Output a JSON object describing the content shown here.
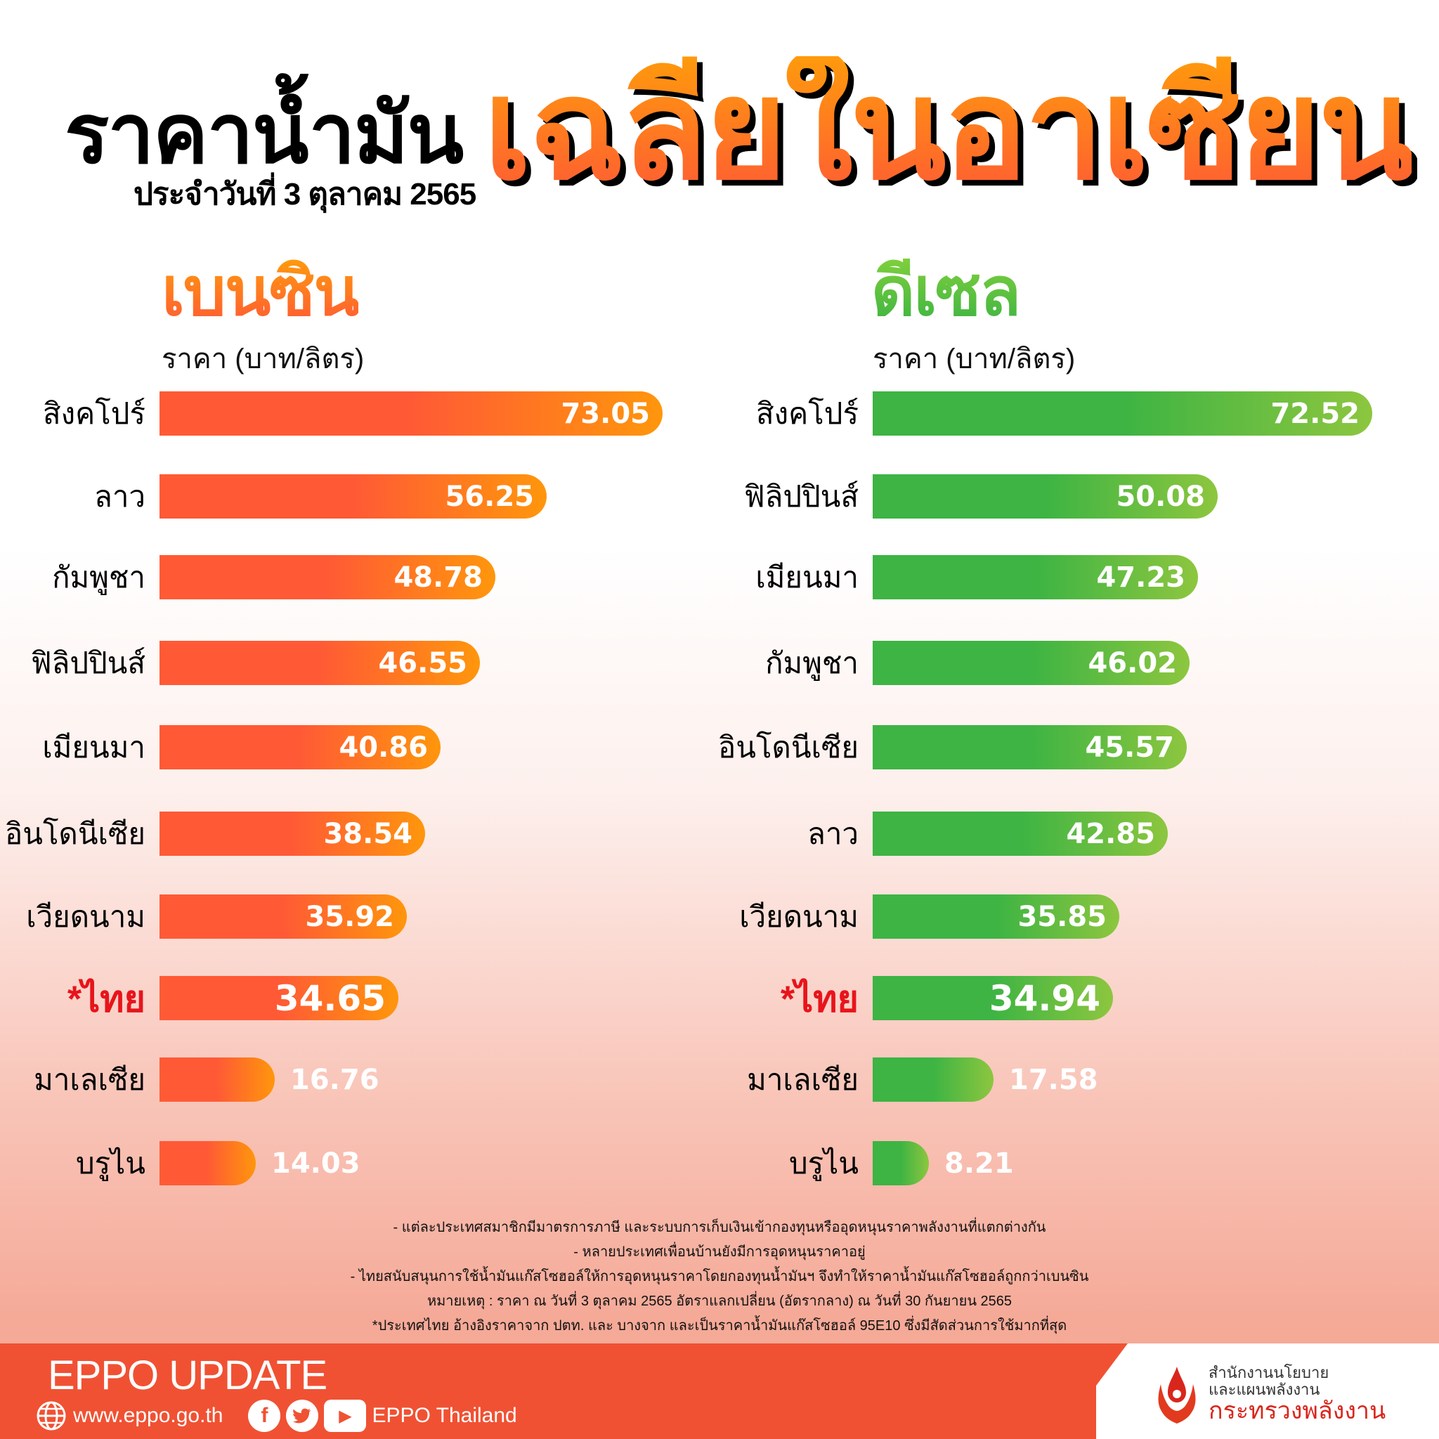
{
  "header": {
    "title_main": "ราคาน้ำมัน",
    "title_big": "เฉลี่ยในอาเซียน",
    "subtitle": "ประจำวันที่ 3 ตุลาคม 2565"
  },
  "petrol": {
    "heading": "เบนซิน",
    "unit": "ราคา (บาท/ลิตร)",
    "rows": [
      {
        "country": "สิงคโปร์",
        "value": "73.05"
      },
      {
        "country": "ลาว",
        "value": "56.25"
      },
      {
        "country": "กัมพูชา",
        "value": "48.78"
      },
      {
        "country": "ฟิลิปปินส์",
        "value": "46.55"
      },
      {
        "country": "เมียนมา",
        "value": "40.86"
      },
      {
        "country": "อินโดนีเซีย",
        "value": "38.54"
      },
      {
        "country": "เวียดนาม",
        "value": "35.92"
      },
      {
        "country": "*ไทย",
        "value": "34.65"
      },
      {
        "country": "มาเลเซีย",
        "value": "16.76"
      },
      {
        "country": "บรูไน",
        "value": "14.03"
      }
    ]
  },
  "diesel": {
    "heading": "ดีเซล",
    "unit": "ราคา (บาท/ลิตร)",
    "rows": [
      {
        "country": "สิงคโปร์",
        "value": "72.52"
      },
      {
        "country": "ฟิลิปปินส์",
        "value": "50.08"
      },
      {
        "country": "เมียนมา",
        "value": "47.23"
      },
      {
        "country": "กัมพูชา",
        "value": "46.02"
      },
      {
        "country": "อินโดนีเซีย",
        "value": "45.57"
      },
      {
        "country": "ลาว",
        "value": "42.85"
      },
      {
        "country": "เวียดนาม",
        "value": "35.85"
      },
      {
        "country": "*ไทย",
        "value": "34.94"
      },
      {
        "country": "มาเลเซีย",
        "value": "17.58"
      },
      {
        "country": "บรูไน",
        "value": "8.21"
      }
    ]
  },
  "notes": [
    "- แต่ละประเทศสมาชิกมีมาตรการภาษี และระบบการเก็บเงินเข้ากองทุนหรืออุดหนุนราคาพลังงานที่แตกต่างกัน",
    "- หลายประเทศเพื่อนบ้านยังมีการอุดหนุนราคาอยู่",
    "- ไทยสนับสนุนการใช้น้ำมันแก๊สโซฮอล์ให้การอุดหนุนราคาโดยกองทุนน้ำมันฯ จึงทำให้ราคาน้ำมันแก๊สโซฮอล์ถูกกว่าเบนซิน",
    "หมายเหตุ : ราคา ณ วันที่ 3 ตุลาคม 2565 อัตราแลกเปลี่ยน (อัตรากลาง) ณ วันที่ 30 กันยายน 2565",
    "*ประเทศไทย อ้างอิงราคาจาก ปตท. และ บางจาก และเป็นราคาน้ำมันแก๊สโซฮอล์ 95E10 ซึ่งมีสัดส่วนการใช้มากที่สุด"
  ],
  "footer": {
    "brand": "EPPO UPDATE",
    "website": "www.eppo.go.th",
    "social_name": "EPPO Thailand",
    "icons": [
      "globe-icon",
      "facebook-icon",
      "twitter-icon",
      "youtube-icon"
    ],
    "org_line1": "สำนักงานนโยบาย",
    "org_line2": "และแผนพลังงาน",
    "org_line3": "กระทรวงพลังงาน"
  },
  "colors": {
    "petrol_start": "#ff5a35",
    "petrol_end": "#ff960c",
    "diesel_start": "#3db443",
    "diesel_end": "#8dc63f",
    "highlight_red": "#e8141b",
    "footer_band": "#f05133"
  },
  "chart_data": [
    {
      "type": "bar",
      "orientation": "horizontal",
      "title": "เบนซิน",
      "xlabel": "ราคา (บาท/ลิตร)",
      "categories": [
        "สิงคโปร์",
        "ลาว",
        "กัมพูชา",
        "ฟิลิปปินส์",
        "เมียนมา",
        "อินโดนีเซีย",
        "เวียดนาม",
        "*ไทย",
        "มาเลเซีย",
        "บรูไน"
      ],
      "values": [
        73.05,
        56.25,
        48.78,
        46.55,
        40.86,
        38.54,
        35.92,
        34.65,
        16.76,
        14.03
      ],
      "grid": false,
      "legend": null
    },
    {
      "type": "bar",
      "orientation": "horizontal",
      "title": "ดีเซล",
      "xlabel": "ราคา (บาท/ลิตร)",
      "categories": [
        "สิงคโปร์",
        "ฟิลิปปินส์",
        "เมียนมา",
        "กัมพูชา",
        "อินโดนีเซีย",
        "ลาว",
        "เวียดนาม",
        "*ไทย",
        "มาเลเซีย",
        "บรูไน"
      ],
      "values": [
        72.52,
        50.08,
        47.23,
        46.02,
        45.57,
        42.85,
        35.85,
        34.94,
        17.58,
        8.21
      ],
      "grid": false,
      "legend": null
    }
  ]
}
